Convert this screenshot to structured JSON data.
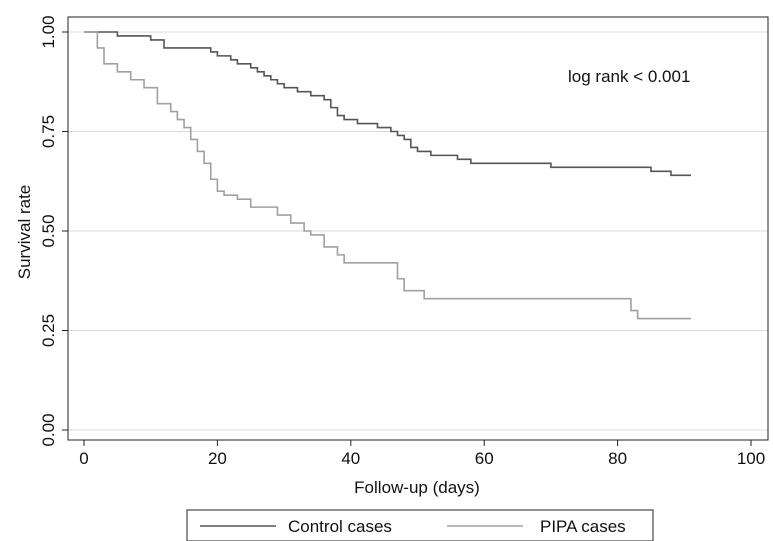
{
  "chart_data": {
    "type": "line",
    "step": true,
    "title": "",
    "xlabel": "Follow-up (days)",
    "ylabel": "Survival rate",
    "xlim": [
      0,
      100
    ],
    "ylim": [
      0,
      1
    ],
    "xticks": [
      0,
      20,
      40,
      60,
      80,
      100
    ],
    "xtick_labels": [
      "0",
      "20",
      "40",
      "60",
      "80",
      "100"
    ],
    "yticks": [
      0,
      0.25,
      0.5,
      0.75,
      1
    ],
    "ytick_labels": [
      "0.00",
      "0.25",
      "0.50",
      "0.75",
      "1.00"
    ],
    "grid": "horizontal",
    "legend_position": "bottom",
    "annotation": "log rank < 0.001",
    "series": [
      {
        "name": "Control cases",
        "color": "#555555",
        "x": [
          0,
          2,
          5,
          10,
          12,
          17,
          19,
          20,
          22,
          23,
          25,
          26,
          27,
          28,
          29,
          30,
          32,
          34,
          36,
          37,
          38,
          39,
          41,
          42,
          44,
          45,
          46,
          47,
          48,
          49,
          50,
          52,
          56,
          58,
          66,
          70,
          80,
          85,
          86,
          88,
          91
        ],
        "y": [
          1.0,
          1.0,
          0.99,
          0.98,
          0.96,
          0.96,
          0.95,
          0.94,
          0.93,
          0.92,
          0.91,
          0.9,
          0.89,
          0.88,
          0.87,
          0.86,
          0.85,
          0.84,
          0.83,
          0.81,
          0.79,
          0.78,
          0.77,
          0.77,
          0.76,
          0.76,
          0.75,
          0.74,
          0.73,
          0.71,
          0.7,
          0.69,
          0.68,
          0.67,
          0.67,
          0.66,
          0.66,
          0.65,
          0.65,
          0.64,
          0.64
        ]
      },
      {
        "name": "PIPA cases",
        "color": "#a0a0a0",
        "x": [
          0,
          1,
          2,
          3,
          5,
          7,
          9,
          11,
          13,
          14,
          15,
          16,
          17,
          18,
          19,
          20,
          21,
          23,
          25,
          27,
          29,
          31,
          33,
          34,
          36,
          38,
          39,
          45,
          47,
          48,
          51,
          55,
          75,
          80,
          82,
          83,
          91
        ],
        "y": [
          1.0,
          1.0,
          0.96,
          0.92,
          0.9,
          0.88,
          0.86,
          0.82,
          0.8,
          0.78,
          0.76,
          0.73,
          0.7,
          0.67,
          0.63,
          0.6,
          0.59,
          0.58,
          0.56,
          0.56,
          0.54,
          0.52,
          0.5,
          0.49,
          0.46,
          0.44,
          0.42,
          0.42,
          0.38,
          0.35,
          0.33,
          0.33,
          0.33,
          0.33,
          0.3,
          0.28,
          0.28
        ]
      }
    ]
  }
}
